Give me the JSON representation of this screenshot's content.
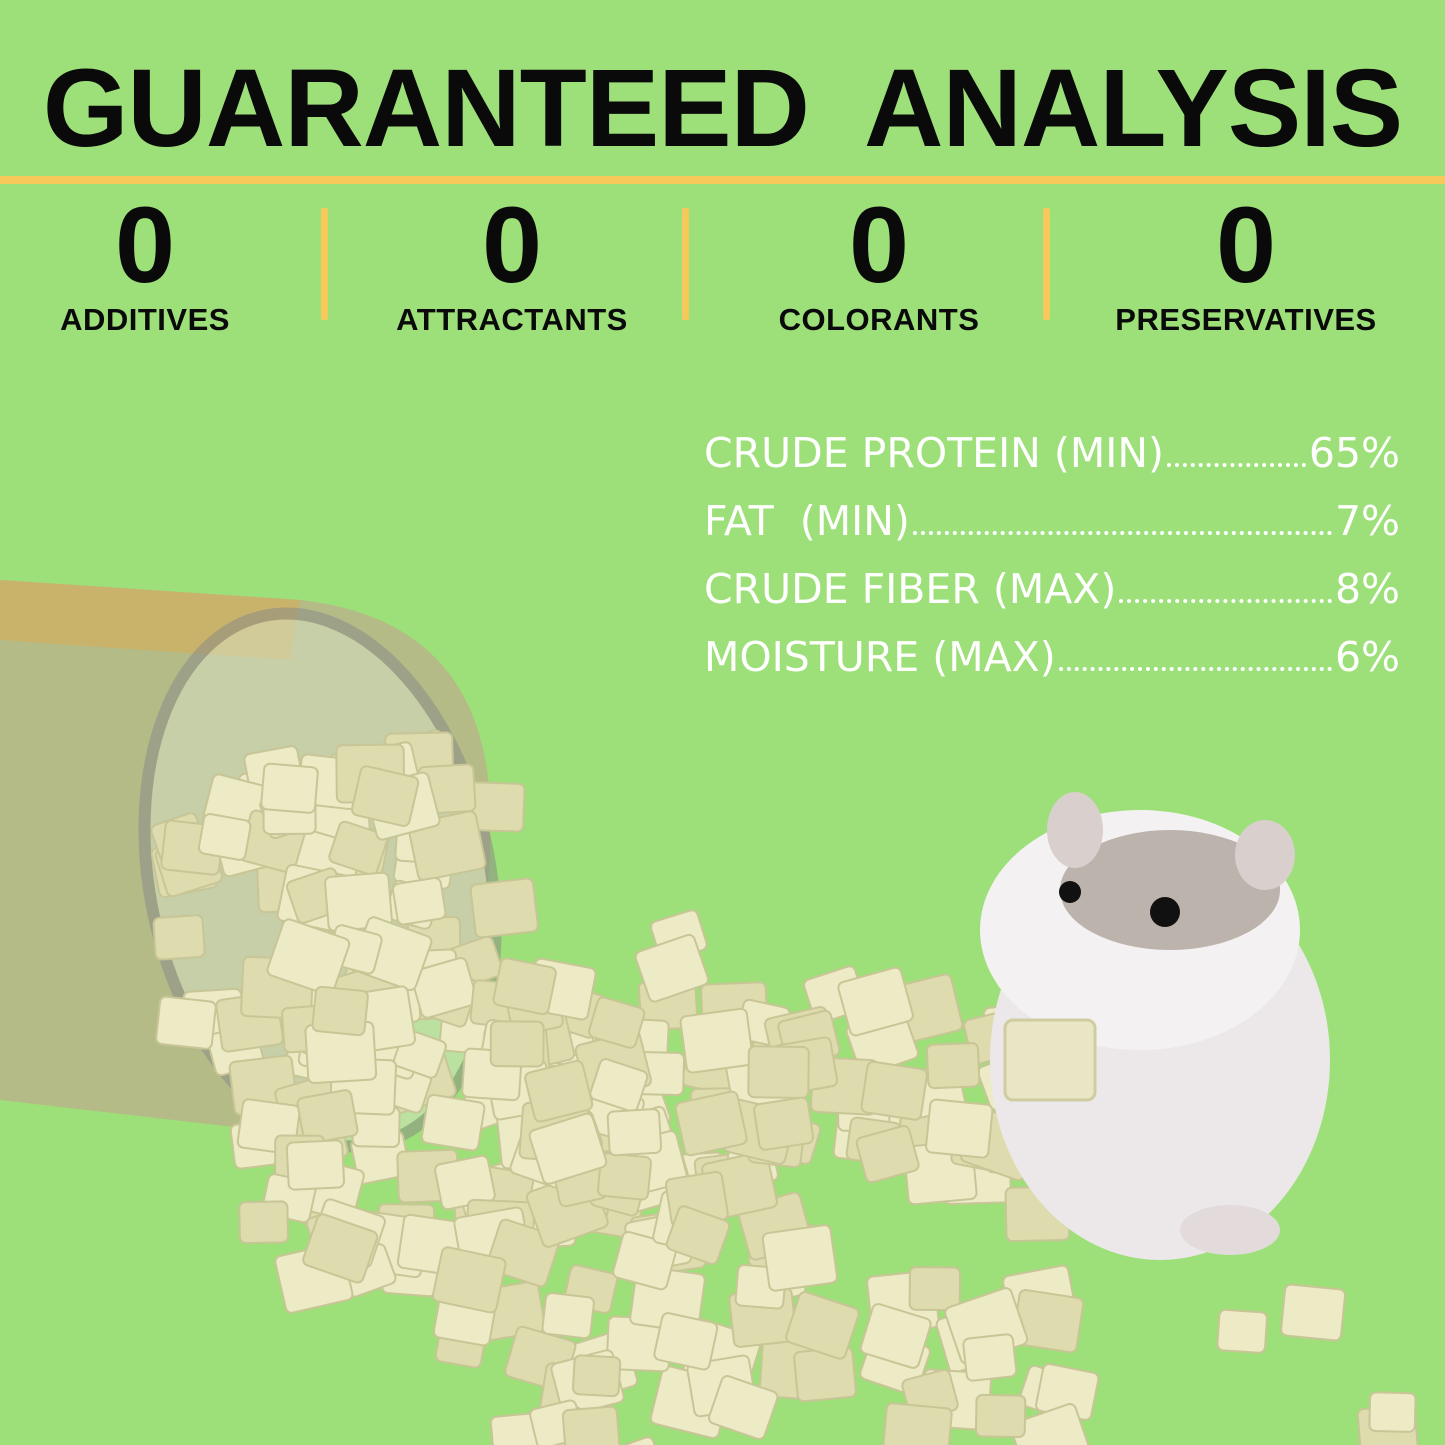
{
  "title": "GUARANTEED  ANALYSIS",
  "claims": [
    {
      "value": "0",
      "label": "ADDITIVES"
    },
    {
      "value": "0",
      "label": "ATTRACTANTS"
    },
    {
      "value": "0",
      "label": "COLORANTS"
    },
    {
      "value": "0",
      "label": "PRESERVATIVES"
    }
  ],
  "analysis": [
    {
      "label": "CRUDE PROTEIN (MIN)",
      "value": "65%"
    },
    {
      "label": "FAT  (MIN)",
      "value": "7%"
    },
    {
      "label": "CRUDE FIBER (MAX)",
      "value": "8%"
    },
    {
      "label": "MOISTURE (MAX)",
      "value": "6%"
    }
  ],
  "colors": {
    "background": "#9ddf78",
    "accent": "#f7c95a",
    "heading": "#0a0a0a",
    "analysis_text": "#ffffff"
  },
  "illustration": {
    "jar": "tipped-over jar of freeze-dried cubes",
    "animal": "hamster"
  }
}
